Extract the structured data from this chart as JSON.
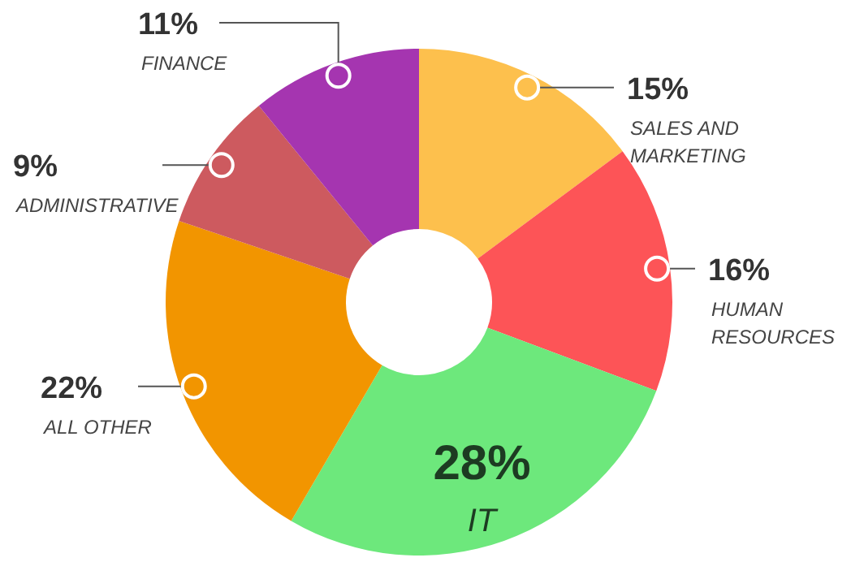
{
  "chart_data": {
    "type": "donut",
    "categories": [
      "SALES AND MARKETING",
      "HUMAN RESOURCES",
      "IT",
      "ALL OTHER",
      "ADMINISTRATIVE",
      "FINANCE"
    ],
    "values": [
      15,
      16,
      28,
      22,
      9,
      11
    ],
    "value_labels": [
      "15%",
      "16%",
      "28%",
      "22%",
      "9%",
      "11%"
    ],
    "colors": [
      "#fdc04d",
      "#fd5457",
      "#6de87c",
      "#f29500",
      "#cd5a5f",
      "#a535b0"
    ]
  }
}
